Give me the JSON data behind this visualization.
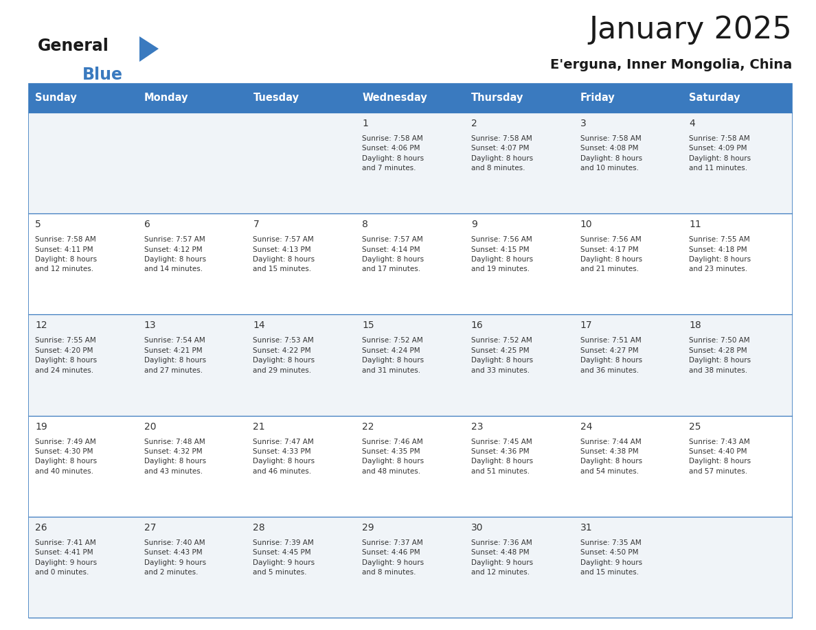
{
  "title": "January 2025",
  "subtitle": "E'erguna, Inner Mongolia, China",
  "header_bg": "#3a7abf",
  "header_text_color": "#ffffff",
  "cell_bg_odd": "#f0f4f8",
  "cell_bg_even": "#ffffff",
  "border_color": "#3a7abf",
  "text_color": "#333333",
  "day_headers": [
    "Sunday",
    "Monday",
    "Tuesday",
    "Wednesday",
    "Thursday",
    "Friday",
    "Saturday"
  ],
  "weeks": [
    [
      {
        "day": "",
        "info": ""
      },
      {
        "day": "",
        "info": ""
      },
      {
        "day": "",
        "info": ""
      },
      {
        "day": "1",
        "info": "Sunrise: 7:58 AM\nSunset: 4:06 PM\nDaylight: 8 hours\nand 7 minutes."
      },
      {
        "day": "2",
        "info": "Sunrise: 7:58 AM\nSunset: 4:07 PM\nDaylight: 8 hours\nand 8 minutes."
      },
      {
        "day": "3",
        "info": "Sunrise: 7:58 AM\nSunset: 4:08 PM\nDaylight: 8 hours\nand 10 minutes."
      },
      {
        "day": "4",
        "info": "Sunrise: 7:58 AM\nSunset: 4:09 PM\nDaylight: 8 hours\nand 11 minutes."
      }
    ],
    [
      {
        "day": "5",
        "info": "Sunrise: 7:58 AM\nSunset: 4:11 PM\nDaylight: 8 hours\nand 12 minutes."
      },
      {
        "day": "6",
        "info": "Sunrise: 7:57 AM\nSunset: 4:12 PM\nDaylight: 8 hours\nand 14 minutes."
      },
      {
        "day": "7",
        "info": "Sunrise: 7:57 AM\nSunset: 4:13 PM\nDaylight: 8 hours\nand 15 minutes."
      },
      {
        "day": "8",
        "info": "Sunrise: 7:57 AM\nSunset: 4:14 PM\nDaylight: 8 hours\nand 17 minutes."
      },
      {
        "day": "9",
        "info": "Sunrise: 7:56 AM\nSunset: 4:15 PM\nDaylight: 8 hours\nand 19 minutes."
      },
      {
        "day": "10",
        "info": "Sunrise: 7:56 AM\nSunset: 4:17 PM\nDaylight: 8 hours\nand 21 minutes."
      },
      {
        "day": "11",
        "info": "Sunrise: 7:55 AM\nSunset: 4:18 PM\nDaylight: 8 hours\nand 23 minutes."
      }
    ],
    [
      {
        "day": "12",
        "info": "Sunrise: 7:55 AM\nSunset: 4:20 PM\nDaylight: 8 hours\nand 24 minutes."
      },
      {
        "day": "13",
        "info": "Sunrise: 7:54 AM\nSunset: 4:21 PM\nDaylight: 8 hours\nand 27 minutes."
      },
      {
        "day": "14",
        "info": "Sunrise: 7:53 AM\nSunset: 4:22 PM\nDaylight: 8 hours\nand 29 minutes."
      },
      {
        "day": "15",
        "info": "Sunrise: 7:52 AM\nSunset: 4:24 PM\nDaylight: 8 hours\nand 31 minutes."
      },
      {
        "day": "16",
        "info": "Sunrise: 7:52 AM\nSunset: 4:25 PM\nDaylight: 8 hours\nand 33 minutes."
      },
      {
        "day": "17",
        "info": "Sunrise: 7:51 AM\nSunset: 4:27 PM\nDaylight: 8 hours\nand 36 minutes."
      },
      {
        "day": "18",
        "info": "Sunrise: 7:50 AM\nSunset: 4:28 PM\nDaylight: 8 hours\nand 38 minutes."
      }
    ],
    [
      {
        "day": "19",
        "info": "Sunrise: 7:49 AM\nSunset: 4:30 PM\nDaylight: 8 hours\nand 40 minutes."
      },
      {
        "day": "20",
        "info": "Sunrise: 7:48 AM\nSunset: 4:32 PM\nDaylight: 8 hours\nand 43 minutes."
      },
      {
        "day": "21",
        "info": "Sunrise: 7:47 AM\nSunset: 4:33 PM\nDaylight: 8 hours\nand 46 minutes."
      },
      {
        "day": "22",
        "info": "Sunrise: 7:46 AM\nSunset: 4:35 PM\nDaylight: 8 hours\nand 48 minutes."
      },
      {
        "day": "23",
        "info": "Sunrise: 7:45 AM\nSunset: 4:36 PM\nDaylight: 8 hours\nand 51 minutes."
      },
      {
        "day": "24",
        "info": "Sunrise: 7:44 AM\nSunset: 4:38 PM\nDaylight: 8 hours\nand 54 minutes."
      },
      {
        "day": "25",
        "info": "Sunrise: 7:43 AM\nSunset: 4:40 PM\nDaylight: 8 hours\nand 57 minutes."
      }
    ],
    [
      {
        "day": "26",
        "info": "Sunrise: 7:41 AM\nSunset: 4:41 PM\nDaylight: 9 hours\nand 0 minutes."
      },
      {
        "day": "27",
        "info": "Sunrise: 7:40 AM\nSunset: 4:43 PM\nDaylight: 9 hours\nand 2 minutes."
      },
      {
        "day": "28",
        "info": "Sunrise: 7:39 AM\nSunset: 4:45 PM\nDaylight: 9 hours\nand 5 minutes."
      },
      {
        "day": "29",
        "info": "Sunrise: 7:37 AM\nSunset: 4:46 PM\nDaylight: 9 hours\nand 8 minutes."
      },
      {
        "day": "30",
        "info": "Sunrise: 7:36 AM\nSunset: 4:48 PM\nDaylight: 9 hours\nand 12 minutes."
      },
      {
        "day": "31",
        "info": "Sunrise: 7:35 AM\nSunset: 4:50 PM\nDaylight: 9 hours\nand 15 minutes."
      },
      {
        "day": "",
        "info": ""
      }
    ]
  ],
  "logo_general_color": "#1a1a1a",
  "logo_blue_color": "#3a7abf",
  "logo_triangle_color": "#3a7abf",
  "fig_width": 11.88,
  "fig_height": 9.18,
  "dpi": 100
}
